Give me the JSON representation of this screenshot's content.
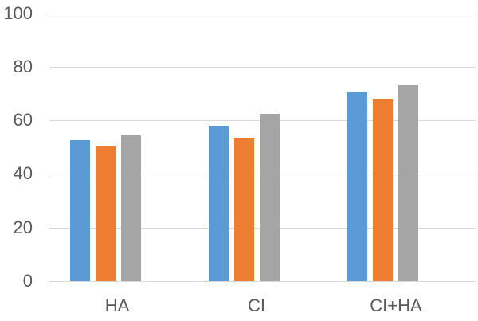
{
  "chart_data": {
    "type": "bar",
    "title": "",
    "xlabel": "",
    "ylabel": "",
    "categories": [
      "HA",
      "CI",
      "CI+HA"
    ],
    "series": [
      {
        "name": "blue",
        "color": "#5B9BD5",
        "values": [
          52.5,
          58,
          70.5
        ]
      },
      {
        "name": "orange",
        "color": "#ED7D31",
        "values": [
          50.5,
          53.5,
          68
        ]
      },
      {
        "name": "gray",
        "color": "#A5A5A5",
        "values": [
          54.5,
          62.5,
          73
        ]
      }
    ],
    "ylim": [
      0,
      100
    ],
    "yticks": [
      0,
      20,
      40,
      60,
      80,
      100
    ],
    "grid": true,
    "legend_position": "none"
  },
  "colors": {
    "background": "#FFFFFF",
    "gridline": "#D9D9D9",
    "axis_line": "#D9D9D9",
    "tick_text": "#595959"
  }
}
